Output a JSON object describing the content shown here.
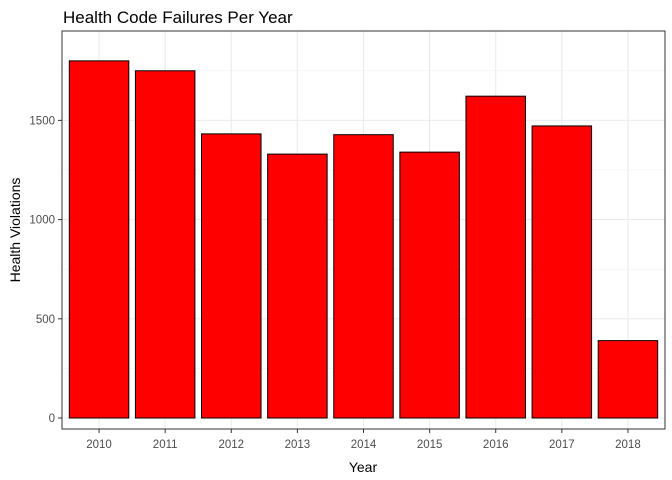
{
  "chart_data": {
    "type": "bar",
    "title": "Health Code Failures Per Year",
    "xlabel": "Year",
    "ylabel": "Health Violations",
    "categories": [
      "2010",
      "2011",
      "2012",
      "2013",
      "2014",
      "2015",
      "2016",
      "2017",
      "2018"
    ],
    "values": [
      1800,
      1750,
      1432,
      1330,
      1428,
      1340,
      1622,
      1472,
      390
    ],
    "ylim": [
      0,
      1890
    ],
    "yticks": [
      0,
      500,
      1000,
      1500
    ],
    "grid": true,
    "legend": "none",
    "bar_color": "#ff0000",
    "bar_outline": "#000000"
  }
}
